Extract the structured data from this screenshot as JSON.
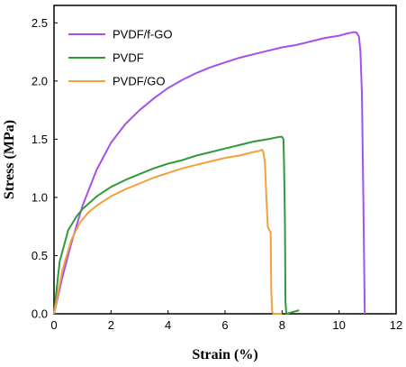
{
  "chart_data": {
    "type": "line",
    "xlabel": "Strain (%)",
    "ylabel": "Stress (MPa)",
    "xlim": [
      0,
      12
    ],
    "ylim": [
      0,
      2.65
    ],
    "xticks": [
      "0",
      "2",
      "4",
      "6",
      "8",
      "10",
      "12"
    ],
    "yticks": [
      "0.0",
      "0.5",
      "1.0",
      "1.5",
      "2.0",
      "2.5"
    ],
    "grid": false,
    "legend_position": "top-left",
    "series": [
      {
        "name": "PVDF/f-GO",
        "color": "#a64ff0",
        "x": [
          0,
          0.3,
          0.6,
          1.0,
          1.5,
          2.0,
          2.5,
          3.0,
          3.5,
          4.0,
          4.5,
          5.0,
          5.5,
          6.0,
          6.5,
          7.0,
          7.5,
          8.0,
          8.5,
          9.0,
          9.5,
          10.0,
          10.3,
          10.5,
          10.6,
          10.7,
          10.75,
          10.8,
          10.85,
          10.9
        ],
        "y": [
          0,
          0.32,
          0.6,
          0.93,
          1.24,
          1.47,
          1.63,
          1.75,
          1.85,
          1.94,
          2.01,
          2.07,
          2.12,
          2.16,
          2.2,
          2.23,
          2.26,
          2.29,
          2.31,
          2.34,
          2.37,
          2.39,
          2.41,
          2.42,
          2.42,
          2.38,
          2.25,
          1.9,
          1.0,
          0.0
        ]
      },
      {
        "name": "PVDF",
        "color": "#2f9a3a",
        "x": [
          0,
          0.2,
          0.5,
          0.8,
          1.0,
          1.5,
          2.0,
          2.5,
          3.0,
          3.5,
          4.0,
          4.5,
          5.0,
          5.5,
          6.0,
          6.5,
          7.0,
          7.5,
          7.9,
          8.0,
          8.05,
          8.07,
          8.1,
          8.12,
          8.15,
          8.3,
          8.6
        ],
        "y": [
          0,
          0.45,
          0.72,
          0.84,
          0.9,
          1.01,
          1.09,
          1.15,
          1.2,
          1.25,
          1.29,
          1.32,
          1.36,
          1.39,
          1.42,
          1.45,
          1.48,
          1.5,
          1.52,
          1.52,
          1.5,
          1.3,
          0.8,
          0.1,
          0.0,
          0.01,
          0.03
        ]
      },
      {
        "name": "PVDF/GO",
        "color": "#f5a03a",
        "x": [
          0,
          0.3,
          0.6,
          0.9,
          1.2,
          1.5,
          2.0,
          2.5,
          3.0,
          3.5,
          4.0,
          4.5,
          5.0,
          5.5,
          6.0,
          6.5,
          7.0,
          7.2,
          7.3,
          7.35,
          7.4,
          7.45,
          7.5,
          7.55,
          7.6,
          7.62,
          7.65,
          7.7,
          7.8,
          8.0
        ],
        "y": [
          0,
          0.38,
          0.63,
          0.78,
          0.87,
          0.93,
          1.01,
          1.07,
          1.12,
          1.17,
          1.21,
          1.25,
          1.28,
          1.31,
          1.34,
          1.36,
          1.39,
          1.4,
          1.41,
          1.38,
          1.3,
          1.0,
          0.75,
          0.72,
          0.7,
          0.2,
          0.02,
          0.0,
          0.0,
          0.0
        ]
      }
    ]
  }
}
